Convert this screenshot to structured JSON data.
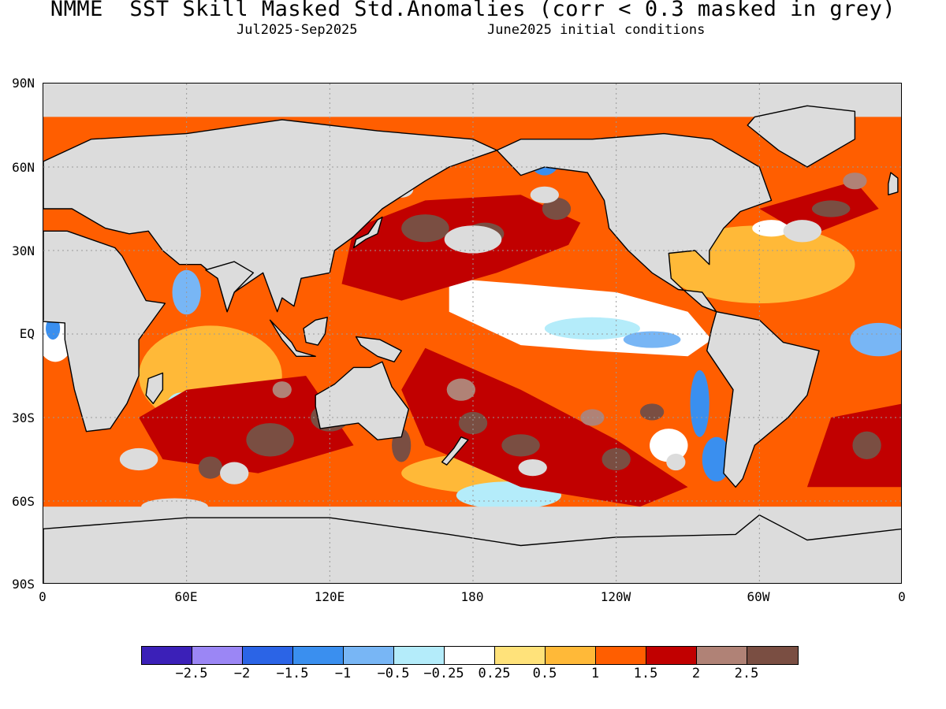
{
  "header": {
    "title": "NMME  SST Skill Masked Std.Anomalies (corr < 0.3 masked in grey)",
    "period": "Jul2025-Sep2025",
    "init": "June2025 initial conditions"
  },
  "axes": {
    "y_ticks": [
      "90N",
      "60N",
      "30N",
      "EQ",
      "30S",
      "60S",
      "90S"
    ],
    "x_ticks": [
      "0",
      "60E",
      "120E",
      "180",
      "120W",
      "60W",
      "0"
    ]
  },
  "colorbar": {
    "colors": [
      "#3b20b8",
      "#9b86f5",
      "#2b64e6",
      "#3a8fef",
      "#78b6f5",
      "#b4ecfa",
      "#ffffff",
      "#ffe27a",
      "#ffb938",
      "#ff5e00",
      "#c10000",
      "#b08276",
      "#7a4e42"
    ],
    "labels": [
      "-2.5",
      "-2",
      "-1.5",
      "-1",
      "-0.5",
      "-0.25",
      "0.25",
      "0.5",
      "1",
      "1.5",
      "2",
      "2.5"
    ]
  },
  "colors": {
    "mask_grey": "#dcdcdc",
    "land_grey": "#dcdcdc"
  }
}
